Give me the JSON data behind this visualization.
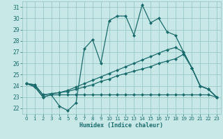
{
  "bg_color": "#c8e8e8",
  "grid_color": "#90c0c0",
  "line_color": "#1a6b6b",
  "xlim": [
    -0.5,
    23.5
  ],
  "ylim": [
    21.5,
    31.5
  ],
  "xticks": [
    0,
    1,
    2,
    3,
    4,
    5,
    6,
    7,
    8,
    9,
    10,
    11,
    12,
    13,
    14,
    15,
    16,
    17,
    18,
    19,
    20,
    21,
    22,
    23
  ],
  "yticks": [
    22,
    23,
    24,
    25,
    26,
    27,
    28,
    29,
    30,
    31
  ],
  "xlabel": "Humidex (Indice chaleur)",
  "line1": [
    24.2,
    23.9,
    23.0,
    23.2,
    22.2,
    21.8,
    22.5,
    27.3,
    28.1,
    26.0,
    29.8,
    30.2,
    30.2,
    28.5,
    31.2,
    29.6,
    30.0,
    28.8,
    28.5,
    27.0,
    25.6,
    24.0,
    23.7,
    23.0
  ],
  "line2": [
    24.2,
    24.0,
    23.0,
    23.2,
    23.2,
    23.2,
    23.2,
    23.2,
    23.2,
    23.2,
    23.2,
    23.2,
    23.2,
    23.2,
    23.2,
    23.2,
    23.2,
    23.2,
    23.2,
    23.2,
    23.2,
    23.2,
    23.2,
    23.0
  ],
  "line3": [
    24.2,
    24.1,
    23.2,
    23.3,
    23.4,
    23.5,
    23.7,
    23.9,
    24.1,
    24.4,
    24.6,
    24.9,
    25.1,
    25.3,
    25.5,
    25.7,
    26.0,
    26.2,
    26.4,
    26.8,
    25.6,
    24.0,
    23.7,
    23.0
  ],
  "line4": [
    24.2,
    24.1,
    23.2,
    23.3,
    23.4,
    23.6,
    23.9,
    24.2,
    24.5,
    24.8,
    25.1,
    25.4,
    25.7,
    26.0,
    26.3,
    26.6,
    26.9,
    27.2,
    27.4,
    27.0,
    25.6,
    24.0,
    23.7,
    23.0
  ]
}
